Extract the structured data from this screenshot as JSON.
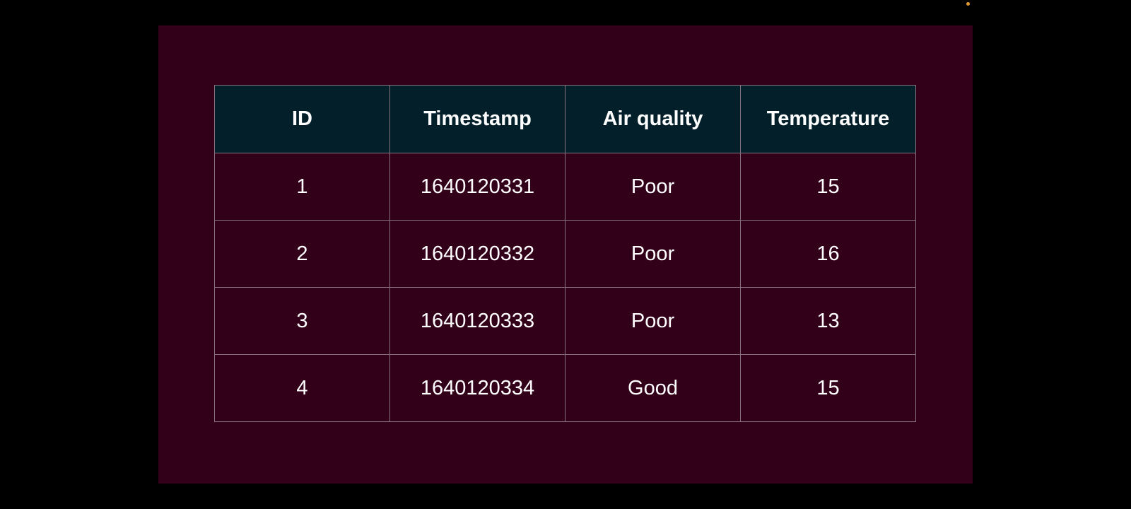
{
  "colors": {
    "background": "#000000",
    "slide_background": "#33001a",
    "header_background": "#03202a",
    "grid_line": "#8a7380",
    "text": "#ffffff",
    "indicator": "#e39a2f"
  },
  "table": {
    "columns": [
      "ID",
      "Timestamp",
      "Air quality",
      "Temperature"
    ],
    "rows": [
      [
        "1",
        "1640120331",
        "Poor",
        "15"
      ],
      [
        "2",
        "1640120332",
        "Poor",
        "16"
      ],
      [
        "3",
        "1640120333",
        "Poor",
        "13"
      ],
      [
        "4",
        "1640120334",
        "Good",
        "15"
      ]
    ]
  }
}
